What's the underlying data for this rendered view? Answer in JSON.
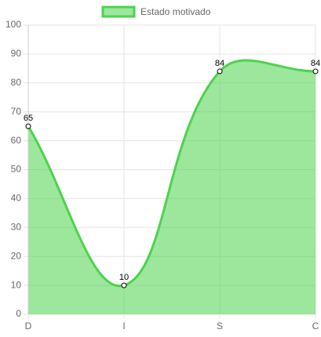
{
  "chart_data": {
    "type": "line",
    "categories": [
      "D",
      "I",
      "S",
      "C"
    ],
    "series": [
      {
        "name": "Estado motivado",
        "color": "#4cd34c",
        "values": [
          65,
          10,
          84,
          84
        ]
      }
    ],
    "ylim": [
      0,
      100
    ],
    "yticks": [
      0,
      10,
      20,
      30,
      40,
      50,
      60,
      70,
      80,
      90,
      100
    ],
    "grid": true,
    "fill": true,
    "legend": "top"
  }
}
